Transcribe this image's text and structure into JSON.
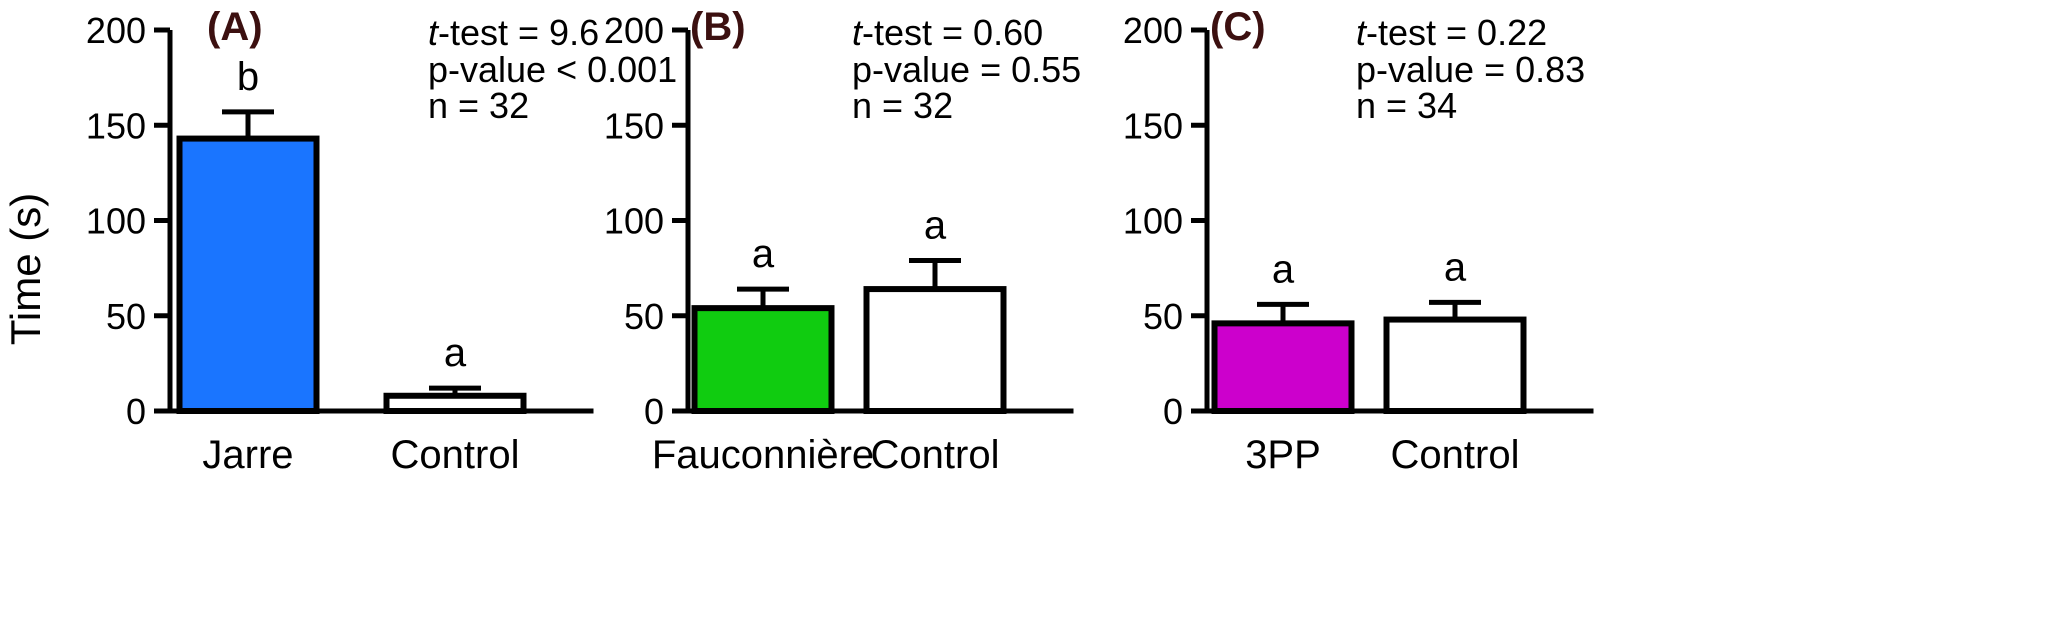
{
  "ylabel": "Time (s)",
  "colors": {
    "axis": "#000000",
    "bar_edge": "#000000",
    "panel_label": "#3c1010"
  },
  "chart_data": [
    {
      "type": "bar",
      "panel_label": "(A)",
      "categories": [
        "Jarre",
        "Control"
      ],
      "values": [
        143,
        8
      ],
      "errors": [
        14,
        4
      ],
      "bar_colors": [
        "#1a75ff",
        "#ffffff"
      ],
      "significance": [
        "b",
        "a"
      ],
      "stats": {
        "t_prefix": "t",
        "t_rest": "-test = 9.6",
        "p": "p-value < 0.001",
        "n": "n = 32"
      },
      "ylabel": "Time (s)",
      "ylim": [
        0,
        200
      ],
      "yticks": [
        "0",
        "50",
        "100",
        "150",
        "200"
      ]
    },
    {
      "type": "bar",
      "panel_label": "(B)",
      "categories": [
        "Fauconnière",
        "Control"
      ],
      "values": [
        54,
        64
      ],
      "errors": [
        10,
        15
      ],
      "bar_colors": [
        "#10cc10",
        "#ffffff"
      ],
      "significance": [
        "a",
        "a"
      ],
      "stats": {
        "t_prefix": "t",
        "t_rest": "-test = 0.60",
        "p": "p-value = 0.55",
        "n": "n = 32"
      },
      "ylim": [
        0,
        200
      ],
      "yticks": [
        "0",
        "50",
        "100",
        "150",
        "200"
      ]
    },
    {
      "type": "bar",
      "panel_label": "(C)",
      "categories": [
        "3PP",
        "Control"
      ],
      "values": [
        46,
        48
      ],
      "errors": [
        10,
        9
      ],
      "bar_colors": [
        "#cc00cc",
        "#ffffff"
      ],
      "significance": [
        "a",
        "a"
      ],
      "stats": {
        "t_prefix": "t",
        "t_rest": "-test = 0.22",
        "p": "p-value = 0.83",
        "n": "n = 34"
      },
      "ylim": [
        0,
        200
      ],
      "yticks": [
        "0",
        "50",
        "100",
        "150",
        "200"
      ]
    }
  ]
}
